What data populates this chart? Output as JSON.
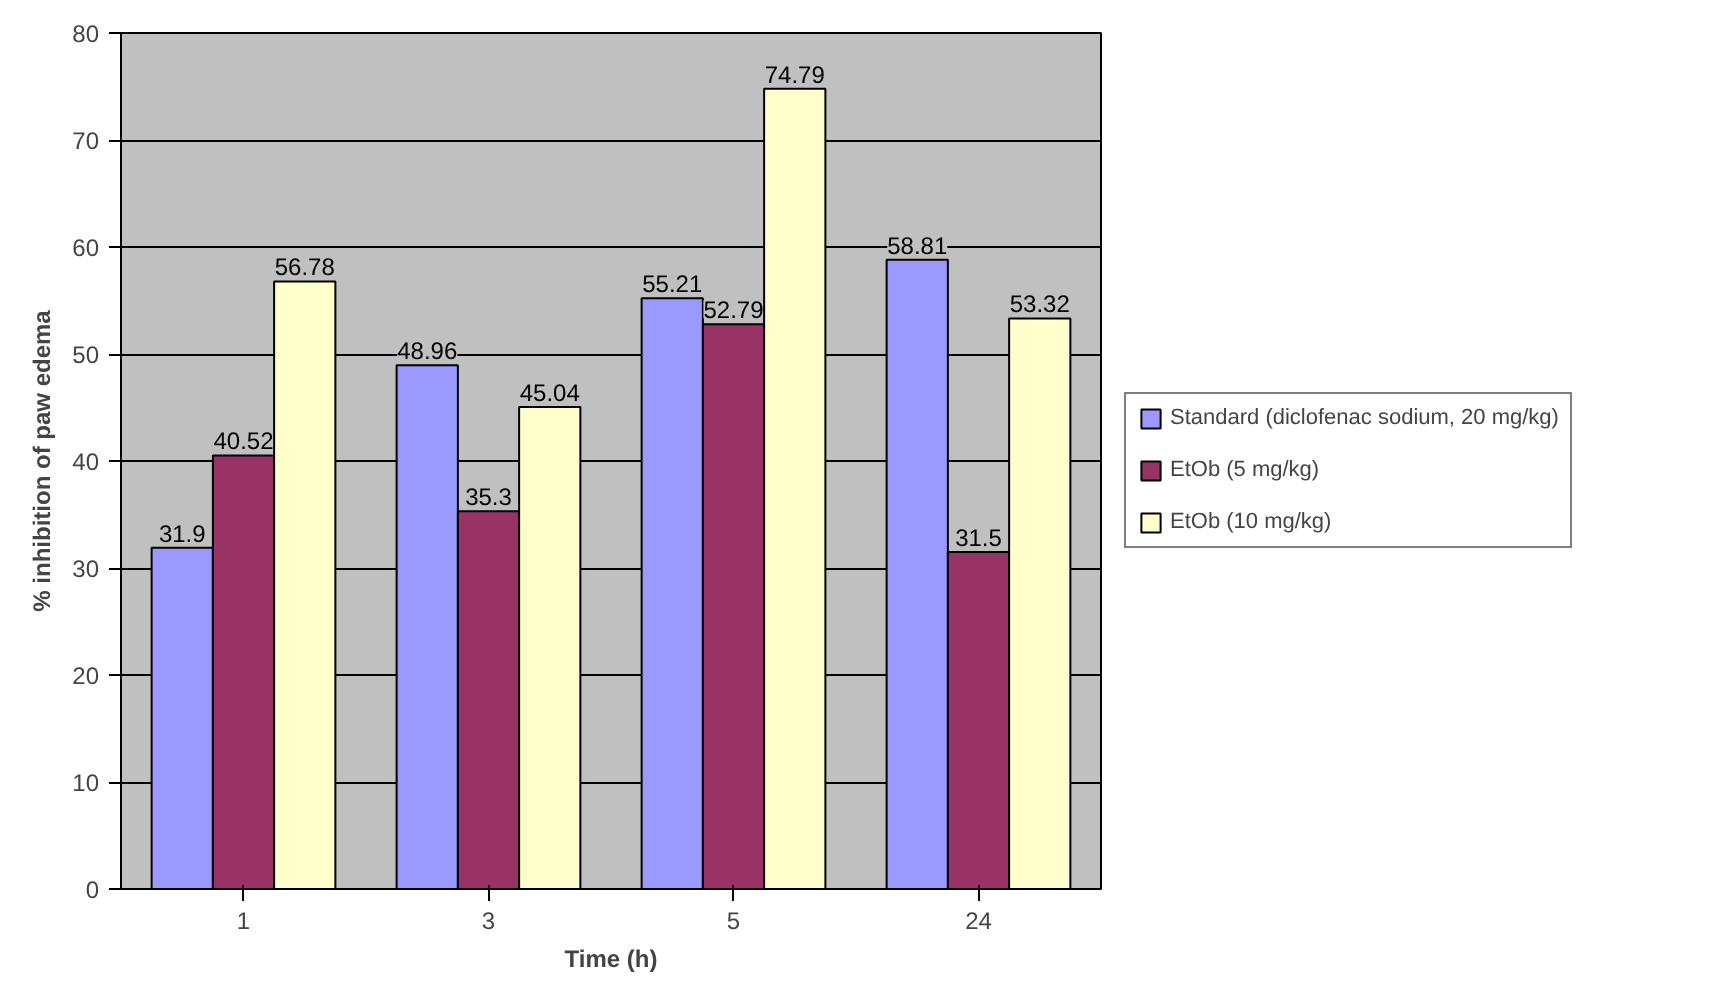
{
  "chart_data": {
    "type": "bar",
    "xlabel": "Time (h)",
    "ylabel": "% inhibition of paw edema",
    "categories": [
      "1",
      "3",
      "5",
      "24"
    ],
    "series": [
      {
        "name": "Standard (diclofenac sodium, 20 mg/kg)",
        "color": "#9999ff",
        "values": [
          31.9,
          48.96,
          55.21,
          58.81
        ]
      },
      {
        "name": "EtOb (5 mg/kg)",
        "color": "#993366",
        "values": [
          40.52,
          35.3,
          52.79,
          31.5
        ]
      },
      {
        "name": "EtOb (10 mg/kg)",
        "color": "#ffffcc",
        "values": [
          56.78,
          45.04,
          74.79,
          53.32
        ]
      }
    ],
    "ylim": [
      0,
      80
    ],
    "yticks": [
      0,
      10,
      20,
      30,
      40,
      50,
      60,
      70,
      80
    ],
    "grid": "y",
    "legend": "right",
    "data_labels": true
  }
}
